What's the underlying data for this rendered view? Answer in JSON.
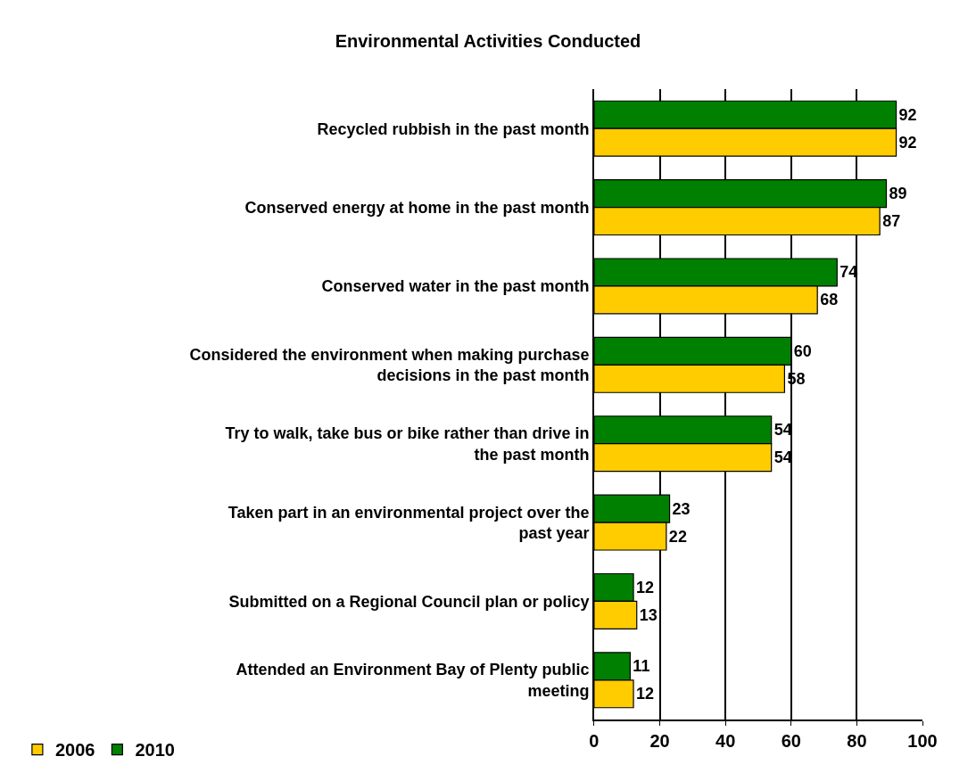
{
  "chart_data": {
    "type": "bar",
    "orientation": "horizontal",
    "title": "Environmental Activities Conducted",
    "categories": [
      "Recycled rubbish in the past month",
      "Conserved energy at home in the past month",
      "Conserved water in the past month",
      "Considered the environment when making purchase decisions in the past month",
      "Try to walk, take bus or bike rather than drive in the past month",
      "Taken part in an environmental project over the past year",
      "Submitted on a Regional Council plan or policy",
      "Attended an Environment Bay of Plenty public meeting"
    ],
    "series": [
      {
        "name": "2010",
        "color": "#008000",
        "values": [
          92,
          89,
          74,
          60,
          54,
          23,
          12,
          11
        ]
      },
      {
        "name": "2006",
        "color": "#ffcc00",
        "values": [
          92,
          87,
          68,
          58,
          54,
          22,
          13,
          12
        ]
      }
    ],
    "xlim": [
      0,
      100
    ],
    "xticks": [
      0,
      20,
      40,
      60,
      80,
      100
    ],
    "grid": "x",
    "legend": "bottom left",
    "data_labels": true
  }
}
